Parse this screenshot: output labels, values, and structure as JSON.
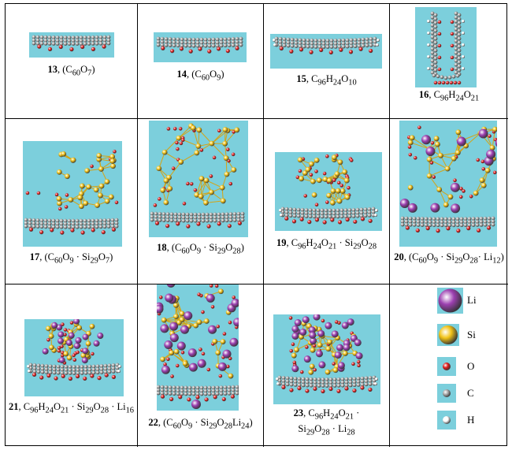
{
  "colors": {
    "background": "#7ccfdc",
    "carbon": "#a9a9a9",
    "oxygen": "#e01b1b",
    "hydrogen": "#ffffff",
    "silicon": "#f2c318",
    "lithium": "#9c3fb0",
    "bond_si": "#d4a417"
  },
  "cells": [
    {
      "num": "13",
      "formula_html": "(C<sub>60</sub>O<sub>7</sub>)"
    },
    {
      "num": "14",
      "formula_html": "(C<sub>60</sub>O<sub>9</sub>)"
    },
    {
      "num": "15",
      "formula_html": "C<sub>96</sub>H<sub>24</sub>O<sub>10</sub>"
    },
    {
      "num": "16",
      "formula_html": "C<sub>96</sub>H<sub>24</sub>O<sub>21</sub>"
    },
    {
      "num": "17",
      "formula_html": "(C<sub>60</sub>O<sub>9</sub> · Si<sub>29</sub>O<sub>7</sub>)"
    },
    {
      "num": "18",
      "formula_html": "(C<sub>60</sub>O<sub>9</sub> · Si<sub>29</sub>O<sub>28</sub>)"
    },
    {
      "num": "19",
      "formula_html": "C<sub>96</sub>H<sub>24</sub>O<sub>21</sub> · Si<sub>29</sub>O<sub>28</sub>"
    },
    {
      "num": "20",
      "formula_html": "(C<sub>60</sub>O<sub>9</sub> · Si<sub>29</sub>O<sub>28</sub>· Li<sub>12</sub>)"
    },
    {
      "num": "21",
      "formula_html": "C<sub>96</sub>H<sub>24</sub>O<sub>21</sub> · Si<sub>29</sub>O<sub>28</sub> · Li<sub>16</sub>"
    },
    {
      "num": "22",
      "formula_html": "(C<sub>60</sub>O<sub>9</sub> · Si<sub>29</sub>O<sub>28</sub>Li<sub>24</sub>)"
    },
    {
      "num": "23",
      "formula_html": "C<sub>96</sub>H<sub>24</sub>O<sub>21</sub> ·<br>Si<sub>29</sub>O<sub>28</sub> · Li<sub>28</sub>"
    }
  ],
  "legend": [
    {
      "label": "Li",
      "icon": "lithium-atom-icon"
    },
    {
      "label": "Si",
      "icon": "silicon-atom-icon"
    },
    {
      "label": "O",
      "icon": "oxygen-atom-icon"
    },
    {
      "label": "C",
      "icon": "carbon-atom-icon"
    },
    {
      "label": "H",
      "icon": "hydrogen-atom-icon"
    }
  ]
}
